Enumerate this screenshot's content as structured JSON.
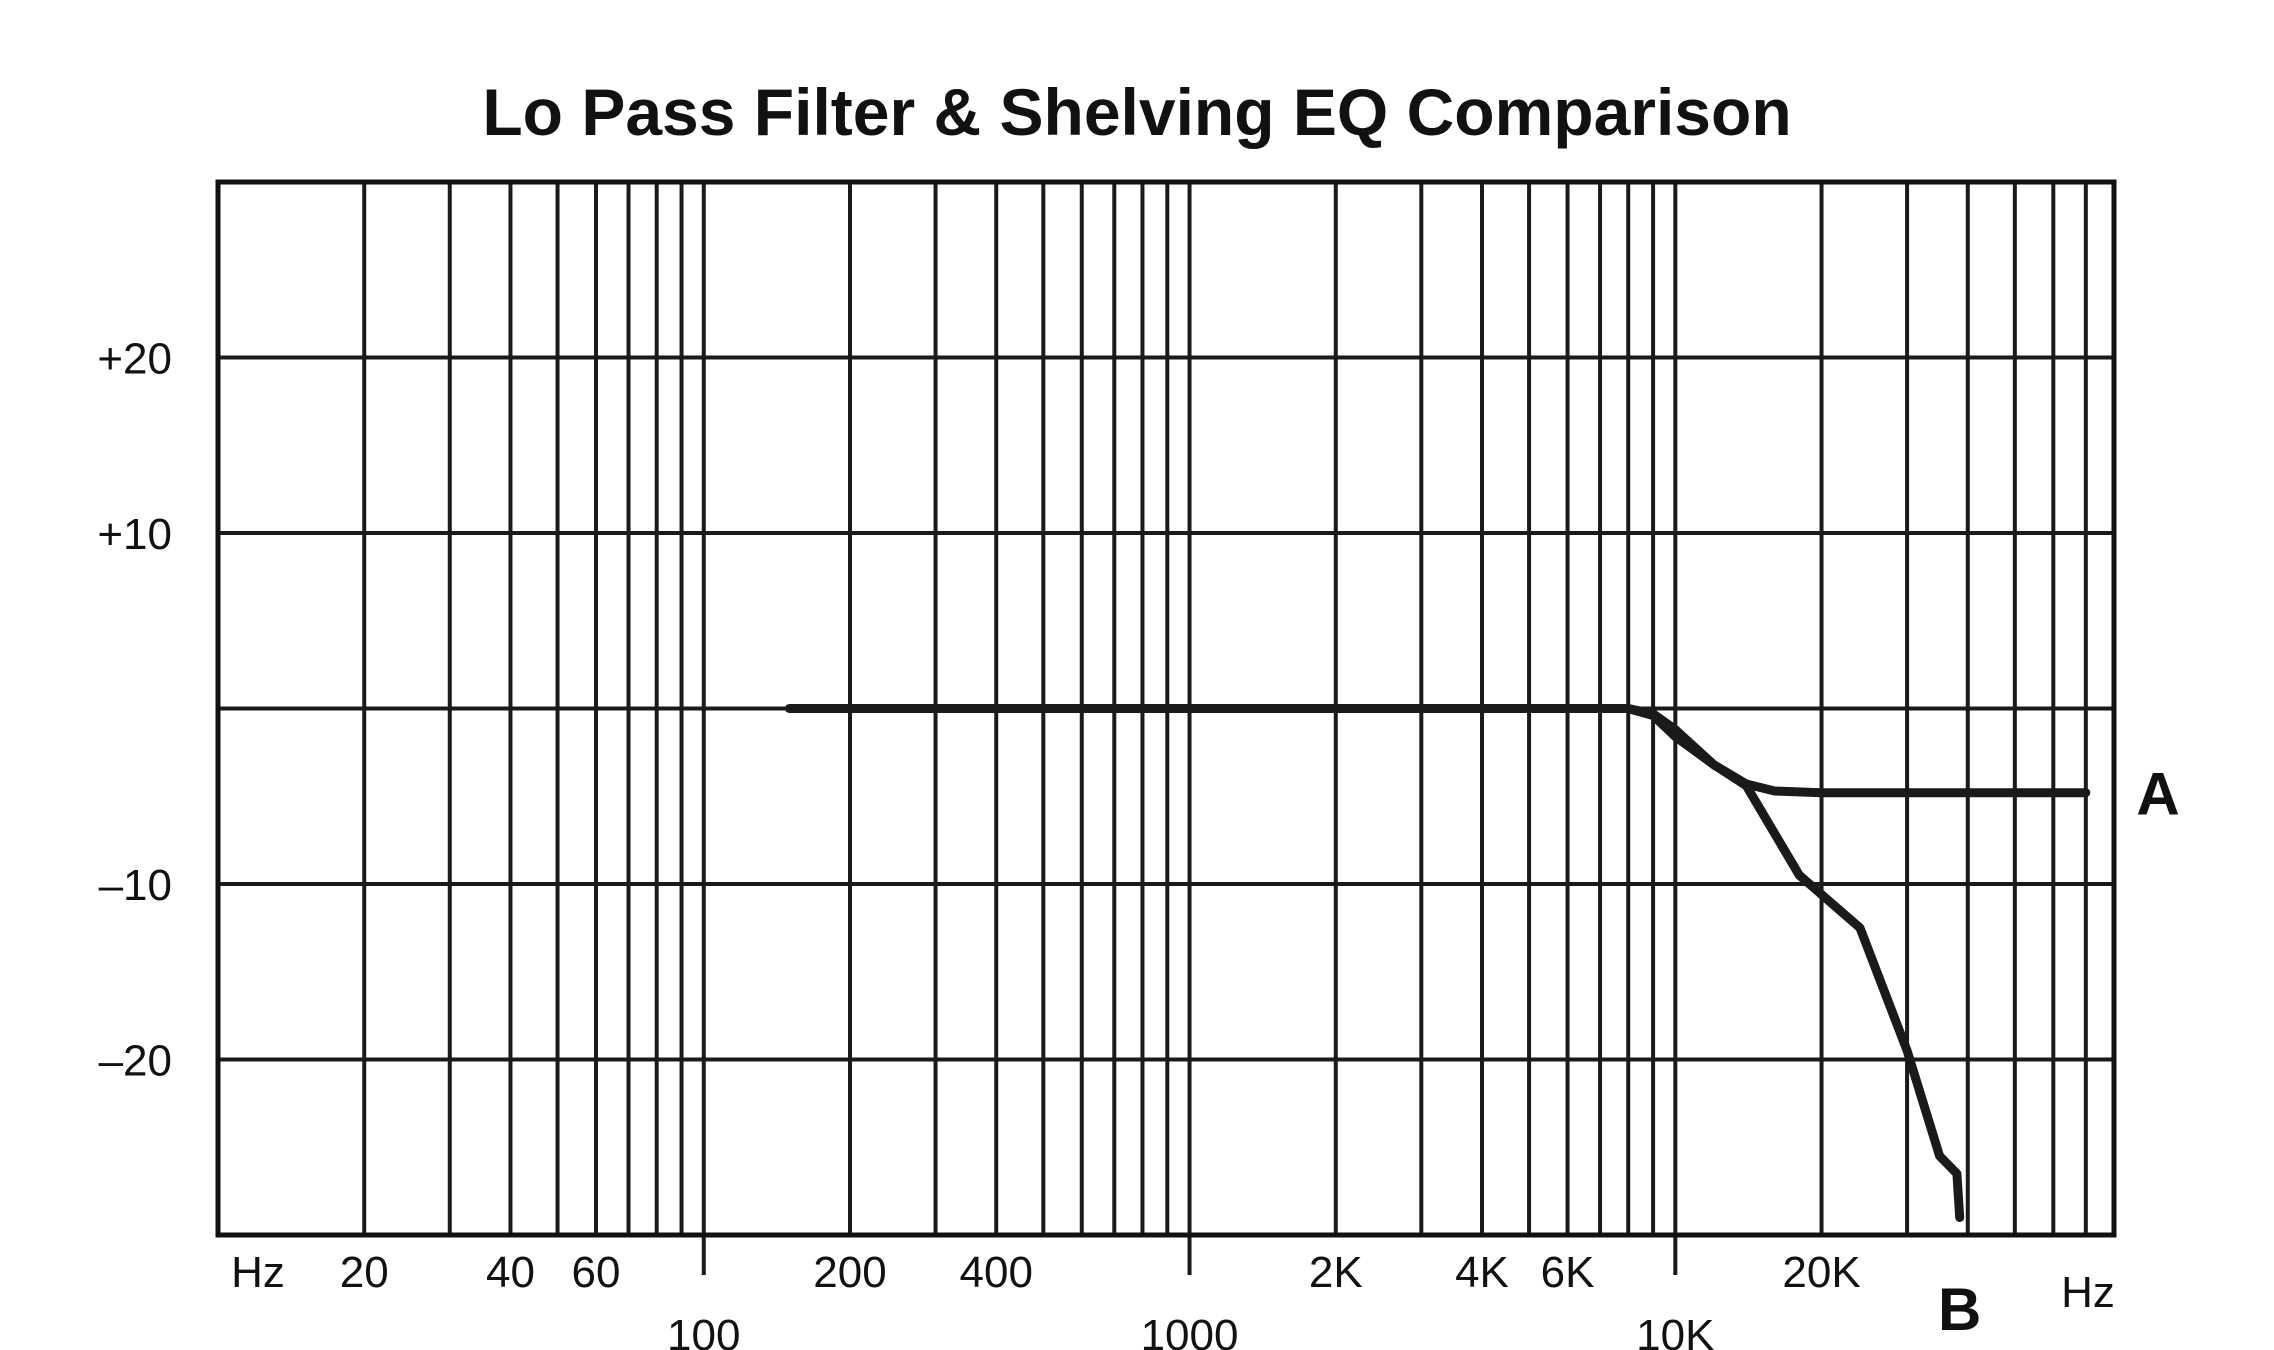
{
  "chart_data": {
    "type": "line",
    "title": "Lo Pass Filter & Shelving EQ Comparison",
    "x_scale": "log",
    "xlim": [
      10,
      80000
    ],
    "ylim": [
      -30,
      30
    ],
    "xlabel_left": "Hz",
    "xlabel_right": "Hz",
    "x_ticks_upper": [
      {
        "value": 20,
        "label": "20"
      },
      {
        "value": 40,
        "label": "40"
      },
      {
        "value": 60,
        "label": "60"
      },
      {
        "value": 200,
        "label": "200"
      },
      {
        "value": 400,
        "label": "400"
      },
      {
        "value": 2000,
        "label": "2K"
      },
      {
        "value": 4000,
        "label": "4K"
      },
      {
        "value": 6000,
        "label": "6K"
      },
      {
        "value": 20000,
        "label": "20K"
      }
    ],
    "x_ticks_lower": [
      {
        "value": 100,
        "label": "100"
      },
      {
        "value": 1000,
        "label": "1000"
      },
      {
        "value": 10000,
        "label": "10K"
      }
    ],
    "y_ticks": [
      {
        "value": 20,
        "label": "+20"
      },
      {
        "value": 10,
        "label": "+10"
      },
      {
        "value": -10,
        "label": "–10"
      },
      {
        "value": -20,
        "label": "–20"
      }
    ],
    "grid_y": [
      20,
      10,
      0,
      -10,
      -20
    ],
    "series": [
      {
        "name": "A",
        "description": "Shelving EQ",
        "points": [
          {
            "x": 150,
            "y": 0
          },
          {
            "x": 1000,
            "y": 0
          },
          {
            "x": 8000,
            "y": 0
          },
          {
            "x": 9000,
            "y": -0.4
          },
          {
            "x": 10000,
            "y": -1.6
          },
          {
            "x": 12000,
            "y": -3.2
          },
          {
            "x": 14000,
            "y": -4.3
          },
          {
            "x": 16000,
            "y": -4.7
          },
          {
            "x": 20000,
            "y": -4.8
          },
          {
            "x": 70000,
            "y": -4.8
          }
        ]
      },
      {
        "name": "B",
        "description": "Lo Pass Filter",
        "points": [
          {
            "x": 8000,
            "y": 0
          },
          {
            "x": 9000,
            "y": -0.3
          },
          {
            "x": 10000,
            "y": -1.2
          },
          {
            "x": 12000,
            "y": -3.2
          },
          {
            "x": 14000,
            "y": -4.4
          },
          {
            "x": 18000,
            "y": -9.5
          },
          {
            "x": 24000,
            "y": -12.5
          },
          {
            "x": 30000,
            "y": -19.5
          },
          {
            "x": 35000,
            "y": -25.5
          },
          {
            "x": 38000,
            "y": -26.5
          },
          {
            "x": 38500,
            "y": -29
          }
        ]
      }
    ]
  }
}
